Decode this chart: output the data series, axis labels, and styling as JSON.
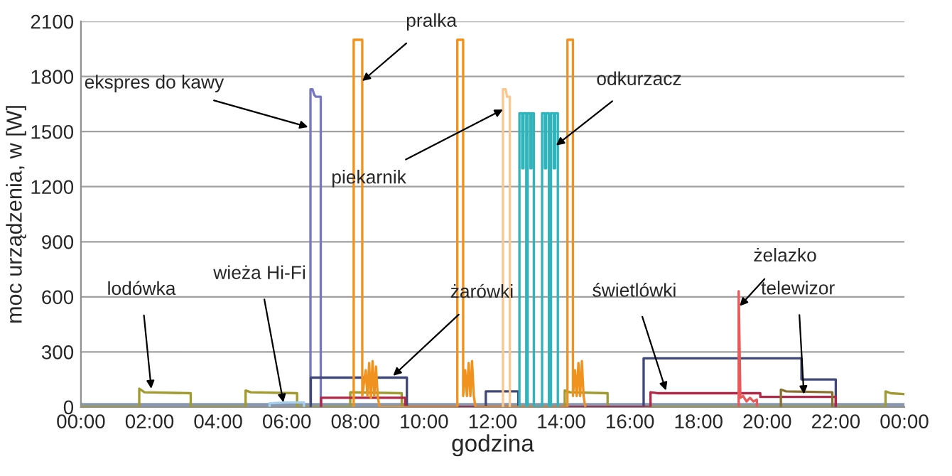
{
  "chart_data": {
    "type": "line",
    "xlabel": "godzina",
    "ylabel": "moc urządzenia, w [W]",
    "xlim": [
      0,
      24
    ],
    "xticks": [
      {
        "value": 0,
        "label": "00:00"
      },
      {
        "value": 2,
        "label": "02:00"
      },
      {
        "value": 4,
        "label": "04:00"
      },
      {
        "value": 6,
        "label": "06:00"
      },
      {
        "value": 8,
        "label": "08:00"
      },
      {
        "value": 10,
        "label": "10:00"
      },
      {
        "value": 12,
        "label": "12:00"
      },
      {
        "value": 14,
        "label": "14:00"
      },
      {
        "value": 16,
        "label": "16:00"
      },
      {
        "value": 18,
        "label": "18:00"
      },
      {
        "value": 20,
        "label": "20:00"
      },
      {
        "value": 22,
        "label": "22:00"
      },
      {
        "value": 24,
        "label": "00:00"
      }
    ],
    "ylim": [
      0,
      2100
    ],
    "yticks": [
      0,
      300,
      600,
      900,
      1200,
      1500,
      1800,
      2100
    ],
    "grid": "y",
    "legend": false,
    "line_style": "solid",
    "marker": "none",
    "series": [
      {
        "color": "#8898b0",
        "x": [
          0,
          24
        ],
        "values": [
          10,
          10
        ]
      },
      {
        "color": "#a09a30",
        "x": [
          0,
          1.7,
          1.7,
          1.85,
          3.2,
          3.2,
          4.8,
          4.8,
          4.95,
          6.3,
          6.3,
          7.85,
          7.85,
          9.35,
          9.35,
          14.1,
          14.1,
          14.25,
          15.35,
          15.35,
          23.45,
          23.45,
          23.6,
          24
        ],
        "values": [
          0,
          0,
          100,
          80,
          75,
          0,
          0,
          90,
          80,
          75,
          0,
          0,
          80,
          75,
          0,
          0,
          90,
          80,
          75,
          0,
          0,
          85,
          75,
          70
        ]
      },
      {
        "color": "#a8d0ec",
        "x": [
          5.5,
          5.5,
          6.0,
          6.5,
          6.5
        ],
        "values": [
          0,
          20,
          25,
          25,
          0
        ]
      },
      {
        "color": "#7878c0",
        "x": [
          6.69,
          6.69,
          6.75,
          6.8,
          6.85,
          6.99,
          6.99
        ],
        "values": [
          0,
          1730,
          1730,
          1700,
          1690,
          1690,
          0
        ]
      },
      {
        "color": "#404878",
        "x": [
          6.7,
          6.7,
          9.5,
          9.5,
          11.8,
          11.8,
          12.75,
          12.75,
          16.4,
          16.4,
          21.0,
          21.0,
          22.0,
          22.0
        ],
        "values": [
          0,
          160,
          160,
          0,
          0,
          85,
          85,
          0,
          0,
          265,
          265,
          150,
          150,
          0
        ]
      },
      {
        "color": "#b02848",
        "x": [
          7.0,
          7.0,
          9.45,
          9.45,
          16.6,
          16.6,
          16.8,
          19.8,
          19.8,
          22.0,
          22.0
        ],
        "values": [
          0,
          50,
          50,
          0,
          0,
          80,
          75,
          75,
          55,
          55,
          0
        ]
      },
      {
        "color": "#f0921e",
        "x": [
          7.95,
          7.95,
          8.2,
          8.2,
          8.3,
          8.35,
          8.4,
          8.45,
          8.5,
          8.55,
          8.6,
          8.65,
          8.7,
          10.97,
          10.97,
          11.14,
          11.14,
          11.2,
          11.25,
          11.3,
          11.35,
          11.4,
          11.45,
          11.5,
          14.18,
          14.18,
          14.34,
          14.34,
          14.4,
          14.45,
          14.5,
          14.55,
          14.6,
          14.65,
          14.7
        ],
        "values": [
          0,
          2000,
          2000,
          60,
          200,
          60,
          240,
          50,
          250,
          60,
          220,
          60,
          0,
          0,
          2000,
          2000,
          60,
          200,
          60,
          240,
          60,
          250,
          60,
          0,
          0,
          2000,
          2000,
          60,
          200,
          60,
          240,
          60,
          250,
          60,
          0
        ]
      },
      {
        "color": "#f8c890",
        "x": [
          12.3,
          12.3,
          12.38,
          12.42,
          12.5,
          12.5
        ],
        "values": [
          0,
          1730,
          1730,
          1690,
          1690,
          0
        ]
      },
      {
        "color": "#30b4bc",
        "x": [
          12.78,
          12.78,
          12.86,
          12.86,
          12.9,
          12.9,
          12.98,
          12.98,
          13.02,
          13.02,
          13.1,
          13.1,
          13.13,
          13.13,
          13.2,
          13.2,
          13.44,
          13.44,
          13.52,
          13.52,
          13.56,
          13.56,
          13.64,
          13.64,
          13.7,
          13.7,
          13.78,
          13.78,
          13.82,
          13.82,
          13.9,
          13.9
        ],
        "values": [
          0,
          1600,
          1600,
          1300,
          1300,
          1600,
          1600,
          0,
          0,
          1600,
          1600,
          1300,
          1300,
          1600,
          1600,
          0,
          0,
          1600,
          1600,
          1300,
          1300,
          1600,
          1600,
          0,
          0,
          1600,
          1600,
          1300,
          1300,
          1600,
          1600,
          0
        ]
      },
      {
        "color": "#e85a5a",
        "x": [
          19.17,
          19.17,
          19.22,
          19.3,
          19.4,
          19.5,
          19.6,
          19.7,
          19.7
        ],
        "values": [
          0,
          630,
          50,
          60,
          30,
          50,
          30,
          40,
          0
        ]
      },
      {
        "color": "#8a7030",
        "x": [
          20.4,
          20.4,
          20.55,
          21.9,
          21.9
        ],
        "values": [
          0,
          95,
          85,
          80,
          0
        ]
      }
    ],
    "annotations": [
      {
        "text": "ekspres do kawy",
        "x": 6.62,
        "y": 1525
      },
      {
        "text": "pralka",
        "x": 8.2,
        "y": 1775
      },
      {
        "text": "piekarnik",
        "x": 12.3,
        "y": 1620
      },
      {
        "text": "odkurzacz",
        "x": 13.85,
        "y": 1425
      },
      {
        "text": "żarówki",
        "x": 9.1,
        "y": 170
      },
      {
        "text": "świetlówki",
        "x": 17.05,
        "y": 90
      },
      {
        "text": "żelazko",
        "x": 19.2,
        "y": 550
      },
      {
        "text": "telewizor",
        "x": 21.07,
        "y": 70
      },
      {
        "text": "lodówka",
        "x": 2.05,
        "y": 100
      },
      {
        "text": "wieża Hi-Fi",
        "x": 5.9,
        "y": 25
      }
    ]
  }
}
